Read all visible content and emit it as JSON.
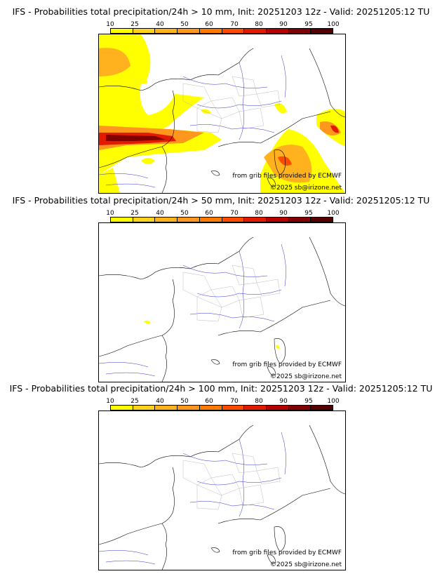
{
  "legend": {
    "ticks": [
      "10",
      "25",
      "40",
      "50",
      "60",
      "70",
      "80",
      "90",
      "95",
      "100"
    ],
    "colors": [
      "#ffff00",
      "#ffd21e",
      "#ffb21e",
      "#ff961e",
      "#ff7a00",
      "#ff4a00",
      "#e11a00",
      "#b40000",
      "#820000",
      "#550000"
    ]
  },
  "credits": {
    "grib": "from grib files provided by ECMWF",
    "copyright": "©2025 sb@irizone.net"
  },
  "panels": [
    {
      "id": "gt10",
      "title": "IFS - Probabilities total precipitation/24h > 10 mm, Init: 20251203 12z - Valid: 20251205:12 TU"
    },
    {
      "id": "gt50",
      "title": "IFS - Probabilities total precipitation/24h > 50 mm, Init: 20251203 12z - Valid: 20251205:12 TU"
    },
    {
      "id": "gt100",
      "title": "IFS - Probabilities total precipitation/24h > 100 mm, Init: 20251203 12z - Valid: 20251205:12 TU"
    }
  ]
}
